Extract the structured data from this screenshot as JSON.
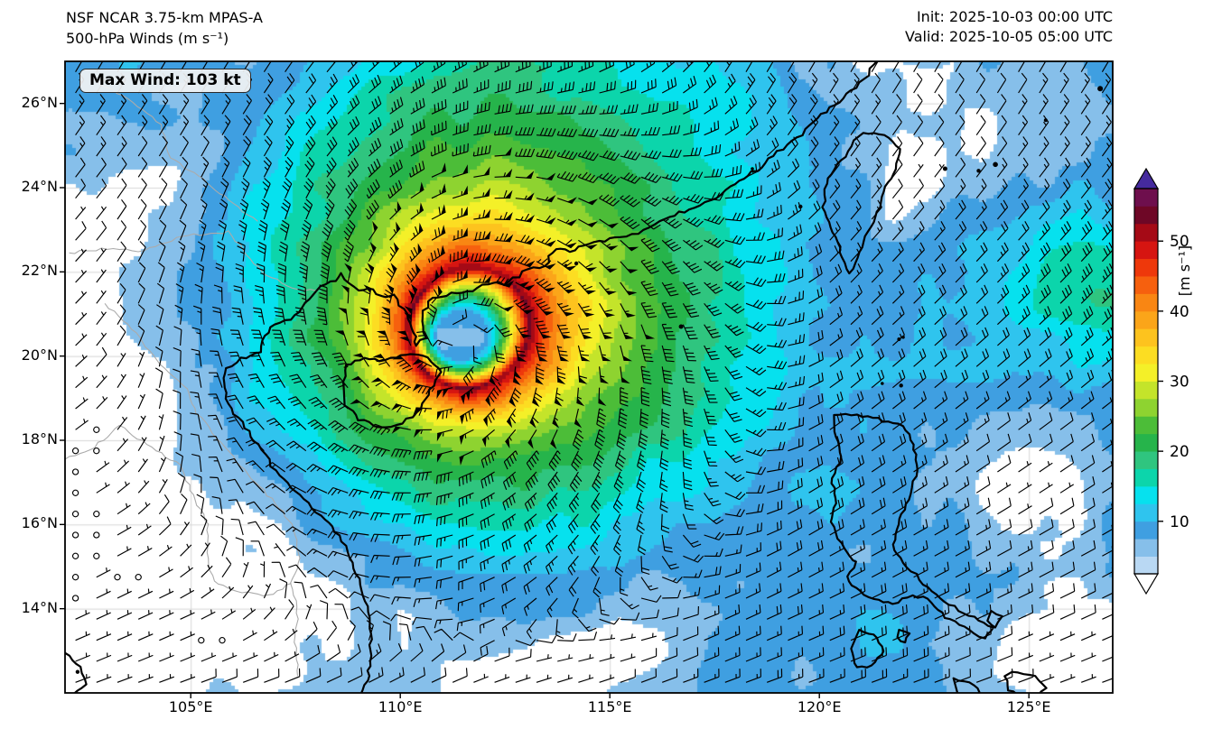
{
  "header": {
    "title_line1": "NSF NCAR 3.75-km MPAS-A",
    "title_line2": "500-hPa Winds (m s⁻¹)",
    "init_label": "Init: 2025-10-03 00:00 UTC",
    "valid_label": "Valid: 2025-10-05 05:00 UTC"
  },
  "map": {
    "max_wind_label": "Max Wind: 103 kt"
  },
  "chart_data": {
    "type": "heatmap",
    "title": "NSF NCAR 3.75-km MPAS-A 500-hPa Winds",
    "units": "m s⁻¹",
    "init_time": "2025-10-03 00:00 UTC",
    "valid_time": "2025-10-05 05:00 UTC",
    "max_wind_kt": 103,
    "max_wind_ms": 53,
    "extent": {
      "lon_min": 102,
      "lon_max": 127,
      "lat_min": 12,
      "lat_max": 27
    },
    "x_ticks": [
      {
        "lon": 105,
        "label": "105°E"
      },
      {
        "lon": 110,
        "label": "110°E"
      },
      {
        "lon": 115,
        "label": "115°E"
      },
      {
        "lon": 120,
        "label": "120°E"
      },
      {
        "lon": 125,
        "label": "125°E"
      }
    ],
    "y_ticks": [
      {
        "lat": 26,
        "label": "26°N"
      },
      {
        "lat": 24,
        "label": "24°N"
      },
      {
        "lat": 22,
        "label": "22°N"
      },
      {
        "lat": 20,
        "label": "20°N"
      },
      {
        "lat": 18,
        "label": "18°N"
      },
      {
        "lat": 16,
        "label": "16°N"
      },
      {
        "lat": 14,
        "label": "14°N"
      }
    ],
    "storm_center": {
      "lon": 111.33,
      "lat": 20.36
    },
    "wind_field": {
      "vortex_max_speed_ms": 53,
      "radius_of_max_wind_deg": 1.33,
      "background_sea_speed_ms": 9,
      "calm_symbol": "open-circle",
      "barb_units": "knots"
    },
    "colorbar": {
      "label": "[m s⁻¹]",
      "tick_values": [
        10,
        20,
        30,
        40,
        50
      ],
      "level_min": 2.5,
      "level_step": 2.5,
      "level_max": 57.5,
      "colors": [
        "#b9d8f3",
        "#86bfea",
        "#3f9fe1",
        "#2fc4ee",
        "#06e1ee",
        "#0cd5ab",
        "#2fc57f",
        "#26b44b",
        "#4cbd38",
        "#8ed330",
        "#c4e42a",
        "#f4f028",
        "#fcdd22",
        "#fdc31e",
        "#fba519",
        "#f98613",
        "#f6600e",
        "#ee380b",
        "#d61511",
        "#a50a16",
        "#6e0726",
        "#6e0f4d"
      ],
      "under_color": "#ffffff",
      "over_color": "#452a9e"
    },
    "features": [
      "china-south-coastline",
      "vietnam-coastline",
      "hainan-island",
      "taiwan-island",
      "luzon-philippines",
      "visayas-islands",
      "ryukyu-islands",
      "country-borders",
      "latitude-longitude-gridlines",
      "wind-barbs"
    ]
  }
}
